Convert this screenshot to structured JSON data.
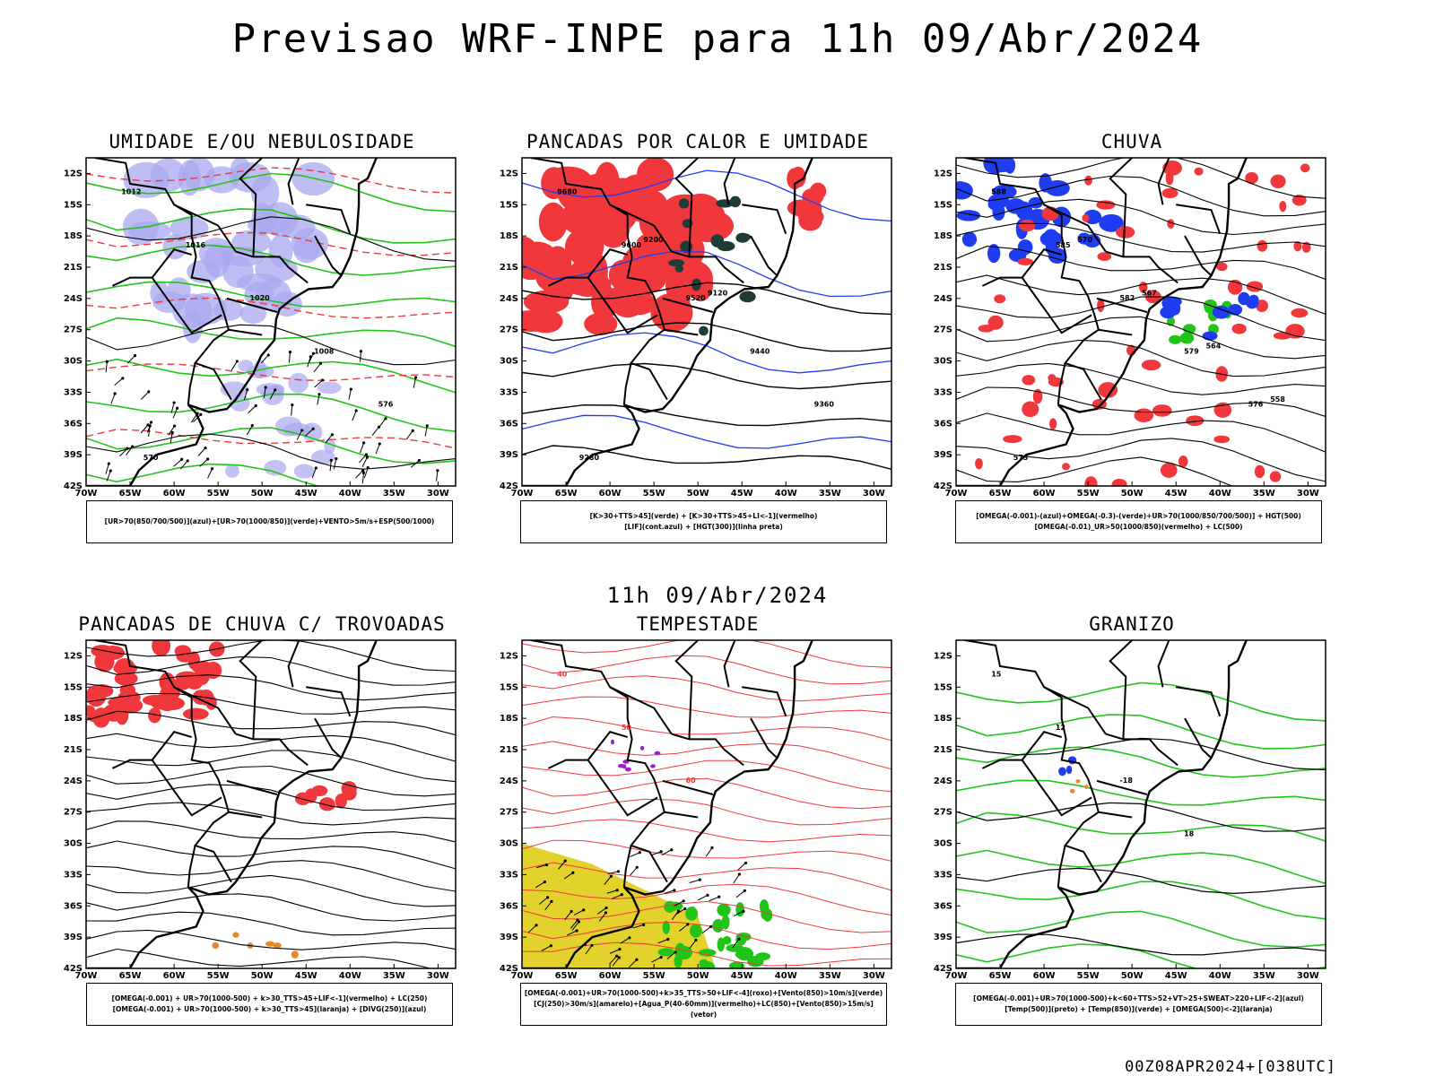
{
  "title": "Previsao WRF-INPE  para 11h 09/Abr/2024",
  "mid_date": "11h 09/Abr/2024",
  "footer": "00Z08APR2024+[038UTC]",
  "axes": {
    "lat_labels": [
      "12S",
      "15S",
      "18S",
      "21S",
      "24S",
      "27S",
      "30S",
      "33S",
      "36S",
      "39S",
      "42S"
    ],
    "lon_labels": [
      "70W",
      "65W",
      "60W",
      "55W",
      "50W",
      "45W",
      "40W",
      "35W",
      "30W"
    ]
  },
  "colors": {
    "red": "#f0383c",
    "green": "#22c41a",
    "blue": "#1f3cf0",
    "lavender": "#a8a8f0",
    "yellow": "#e0d020",
    "orange": "#e88a2a",
    "dark": "#203c38",
    "purple": "#a020d0"
  },
  "panels": [
    {
      "title": "UMIDADE E/OU NEBULOSIDADE",
      "legend": [
        "[UR>70(850/700/500)](azul)+[UR>70(1000/850)](verde)+VENTO>5m/s+ESP(500/1000)"
      ],
      "contour_labels": [
        "1012",
        "1016",
        "1020",
        "1008",
        "576",
        "570"
      ]
    },
    {
      "title": "PANCADAS POR CALOR E UMIDADE",
      "legend": [
        "[K>30+TTS>45](verde) + [K>30+TTS>45+LI<-1](vermelho)",
        "[LIF](cont.azul) + [HGT(300)](linha preta)"
      ],
      "contour_labels": [
        "9680",
        "9600",
        "9520",
        "9440",
        "9360",
        "9280",
        "9200",
        "9120"
      ]
    },
    {
      "title": "CHUVA",
      "legend": [
        "[OMEGA(-0.001)-(azul)+OMEGA(-0.3)-(verde)+UR>70(1000/850/700/500)] + HGT(500)",
        "[OMEGA(-0.01)_UR>50(1000/850)(vermelho) + LC(500)"
      ],
      "contour_labels": [
        "588",
        "585",
        "582",
        "579",
        "576",
        "573",
        "570",
        "567",
        "564",
        "558"
      ]
    },
    {
      "title": "PANCADAS DE CHUVA C/ TROVOADAS",
      "legend": [
        "[OMEGA(-0.001) + UR>70(1000-500) + k>30_TTS>45+LIF<-1](vermelho) + LC(250)",
        "[OMEGA(-0.001) + UR>70(1000-500) + k>30_TTS>45](laranja) + [DIVG(250)](azul)"
      ],
      "contour_labels": []
    },
    {
      "title": "TEMPESTADE",
      "legend": [
        "[OMEGA(-0.001)+UR>70(1000-500)+k>35_TTS>50+LIF<-4](roxo)+[Vento(850)>10m/s](verde)",
        "[CJ(250)>30m/s](amarelo)+[Agua_P(40-60mm)](vermelho)+LC(850)+[Vento(850)>15m/s](vetor)"
      ],
      "contour_labels": [
        "40",
        "50",
        "60"
      ]
    },
    {
      "title": "GRANIZO",
      "legend": [
        "[OMEGA(-0.001)+UR>70(1000-500)+k<60+TTS>52+VT>25+SWEAT>220+LIF<-2](azul)",
        "[Temp(500)](preto) + [Temp(850)](verde) + [OMEGA(500)<-2](laranja)"
      ],
      "contour_labels": [
        "15",
        "12",
        "-18",
        "18"
      ]
    }
  ]
}
